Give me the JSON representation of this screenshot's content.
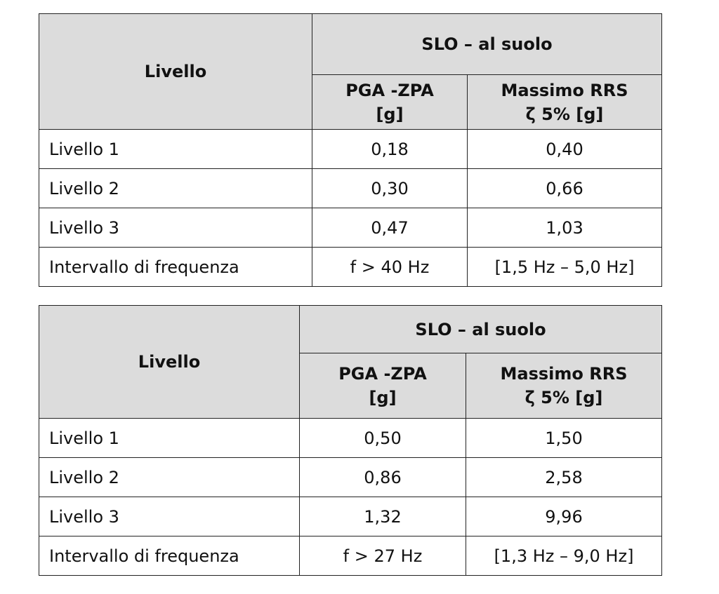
{
  "tables": [
    {
      "header": {
        "level": "Livello",
        "group": "SLO – al suolo",
        "col1_line1": "PGA -ZPA",
        "col1_line2": "[g]",
        "col2_line1": "Massimo RRS",
        "col2_line2": "ζ 5% [g]"
      },
      "rows": [
        {
          "label": "Livello 1",
          "pga": "0,18",
          "rrs": "0,40"
        },
        {
          "label": "Livello 2",
          "pga": "0,30",
          "rrs": "0,66"
        },
        {
          "label": "Livello 3",
          "pga": "0,47",
          "rrs": "1,03"
        },
        {
          "label": "Intervallo di frequenza",
          "pga": "f > 40 Hz",
          "rrs": "[1,5 Hz – 5,0 Hz]"
        }
      ]
    },
    {
      "header": {
        "level": "Livello",
        "group": "SLO – al suolo",
        "col1_line1": "PGA -ZPA",
        "col1_line2": "[g]",
        "col2_line1": "Massimo RRS",
        "col2_line2": "ζ 5% [g]"
      },
      "rows": [
        {
          "label": "Livello 1",
          "pga": "0,50",
          "rrs": "1,50"
        },
        {
          "label": "Livello 2",
          "pga": "0,86",
          "rrs": "2,58"
        },
        {
          "label": "Livello 3",
          "pga": "1,32",
          "rrs": "9,96"
        },
        {
          "label": "Intervallo di frequenza",
          "pga": "f > 27 Hz",
          "rrs": "[1,3 Hz – 9,0 Hz]"
        }
      ]
    }
  ]
}
